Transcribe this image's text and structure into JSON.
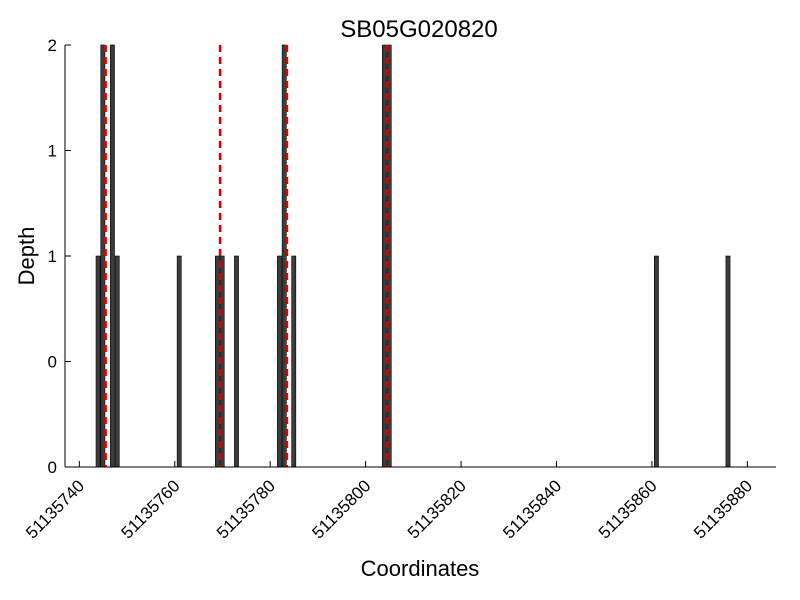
{
  "chart_data": {
    "type": "bar",
    "title": "SB05G020820",
    "xlabel": "Coordinates",
    "ylabel": "Depth",
    "xlim": [
      51135737,
      51135886
    ],
    "ylim": [
      0,
      2
    ],
    "x_ticks": [
      51135740,
      51135760,
      51135780,
      51135800,
      51135820,
      51135840,
      51135860,
      51135880
    ],
    "x_tick_labels": [
      "51135740",
      "51135760",
      "51135780",
      "51135800",
      "51135820",
      "51135840",
      "51135860",
      "51135880"
    ],
    "y_ticks": [
      0,
      0.5,
      1,
      1.5,
      2
    ],
    "y_tick_labels": [
      "0",
      "0",
      "1",
      "1",
      "2"
    ],
    "bar_color": "#3c3c3c",
    "bars": [
      {
        "x": 51135744,
        "value": 1
      },
      {
        "x": 51135745,
        "value": 2
      },
      {
        "x": 51135747,
        "value": 2
      },
      {
        "x": 51135748,
        "value": 1
      },
      {
        "x": 51135761,
        "value": 1
      },
      {
        "x": 51135769,
        "value": 1
      },
      {
        "x": 51135770,
        "value": 1
      },
      {
        "x": 51135773,
        "value": 1
      },
      {
        "x": 51135782,
        "value": 1
      },
      {
        "x": 51135783,
        "value": 2
      },
      {
        "x": 51135785,
        "value": 1
      },
      {
        "x": 51135804,
        "value": 2
      },
      {
        "x": 51135805,
        "value": 2
      },
      {
        "x": 51135861,
        "value": 1
      },
      {
        "x": 51135876,
        "value": 1
      }
    ],
    "markers": {
      "color": "#dd0000",
      "style": "dashed",
      "x": [
        51135745.5,
        51135769.5,
        51135783.5,
        51135804.5
      ]
    },
    "grid": false
  }
}
